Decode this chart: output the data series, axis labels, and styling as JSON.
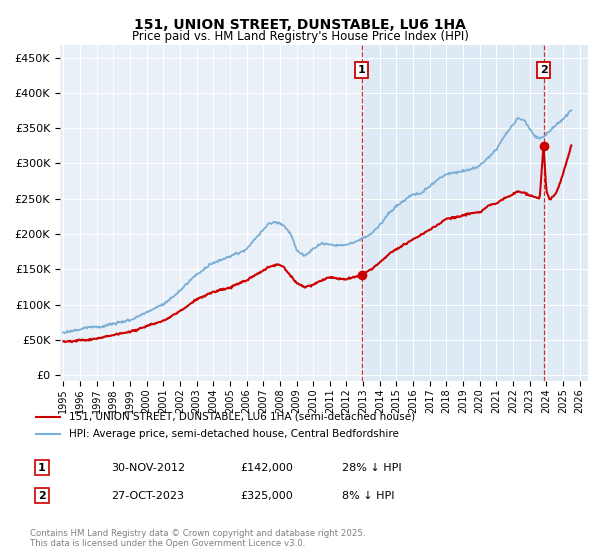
{
  "title": "151, UNION STREET, DUNSTABLE, LU6 1HA",
  "subtitle": "Price paid vs. HM Land Registry's House Price Index (HPI)",
  "yticks": [
    0,
    50000,
    100000,
    150000,
    200000,
    250000,
    300000,
    350000,
    400000,
    450000
  ],
  "ylim": [
    -8000,
    468000
  ],
  "xlim_start": 1994.8,
  "xlim_end": 2026.5,
  "sale1_date": 2012.92,
  "sale1_price": 142000,
  "sale2_date": 2023.83,
  "sale2_price": 325000,
  "red_color": "#cc0000",
  "blue_color": "#7aaed6",
  "shade_color": "#d8e8f5",
  "legend1": "151, UNION STREET, DUNSTABLE, LU6 1HA (semi-detached house)",
  "legend2": "HPI: Average price, semi-detached house, Central Bedfordshire",
  "annotation1_date": "30-NOV-2012",
  "annotation1_price": "£142,000",
  "annotation1_hpi": "28% ↓ HPI",
  "annotation2_date": "27-OCT-2023",
  "annotation2_price": "£325,000",
  "annotation2_hpi": "8% ↓ HPI",
  "footer": "Contains HM Land Registry data © Crown copyright and database right 2025.\nThis data is licensed under the Open Government Licence v3.0.",
  "background_color": "#eaf0f8"
}
